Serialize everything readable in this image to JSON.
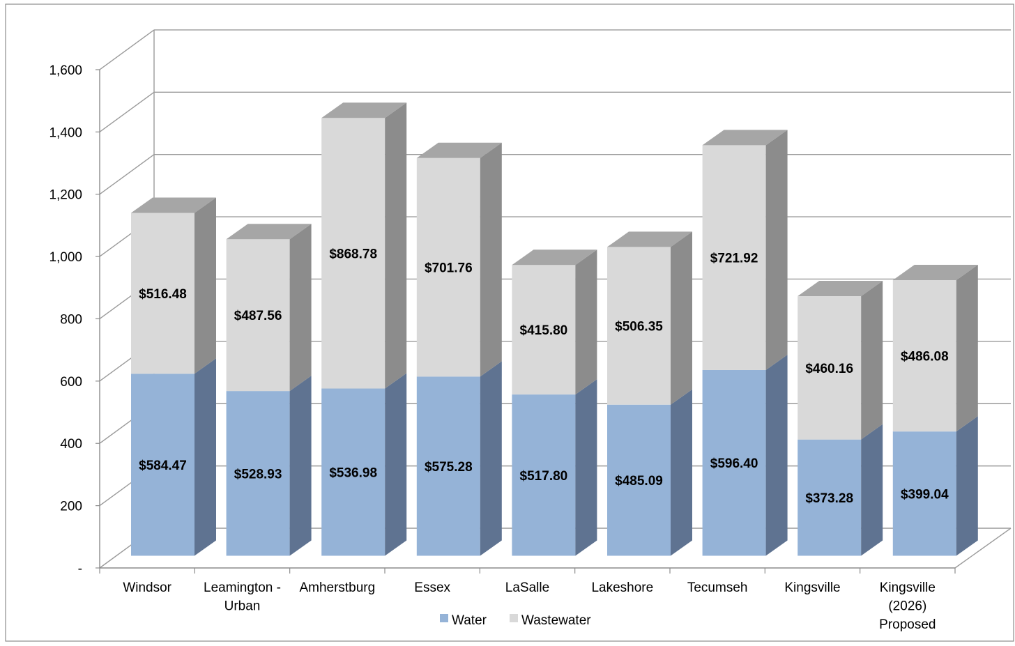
{
  "chart_data": {
    "type": "bar",
    "stacked": true,
    "three_d": true,
    "categories": [
      [
        "Windsor"
      ],
      [
        "Leamington -",
        "Urban"
      ],
      [
        "Amherstburg"
      ],
      [
        "Essex"
      ],
      [
        "LaSalle"
      ],
      [
        "Lakeshore"
      ],
      [
        "Tecumseh"
      ],
      [
        "Kingsville"
      ],
      [
        "Kingsville",
        "(2026)",
        "Proposed"
      ]
    ],
    "series": [
      {
        "name": "Water",
        "color": "#95b3d7",
        "side_color": "#5f7391",
        "values": [
          584.47,
          528.93,
          536.98,
          575.28,
          517.8,
          485.09,
          596.4,
          373.28,
          399.04
        ],
        "labels": [
          "$584.47",
          "$528.93",
          "$536.98",
          "$575.28",
          "$517.80",
          "$485.09",
          "$596.40",
          "$373.28",
          "$399.04"
        ]
      },
      {
        "name": "Wastewater",
        "color": "#d9d9d9",
        "side_color": "#8c8c8c",
        "top_color": "#a6a6a6",
        "values": [
          516.48,
          487.56,
          868.78,
          701.76,
          415.8,
          506.35,
          721.92,
          460.16,
          486.08
        ],
        "labels": [
          "$516.48",
          "$487.56",
          "$868.78",
          "$701.76",
          "$415.80",
          "$506.35",
          "$721.92",
          "$460.16",
          "$486.08"
        ]
      }
    ],
    "ylim": [
      0,
      1600
    ],
    "yticks": [
      0,
      200,
      400,
      600,
      800,
      1000,
      1200,
      1400,
      1600
    ],
    "ytick_labels": [
      "-",
      "200",
      "400",
      "600",
      "800",
      "1,000",
      "1,200",
      "1,400",
      "1,600"
    ],
    "grid": true,
    "legend_position": "bottom"
  }
}
